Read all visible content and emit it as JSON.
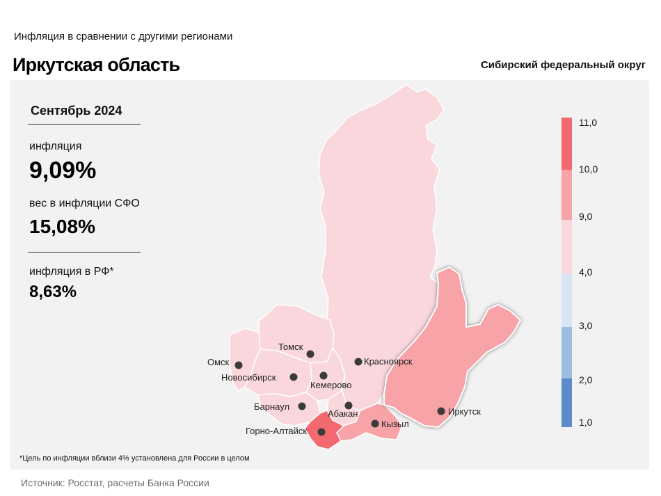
{
  "header": {
    "subtitle": "Инфляция  в сравнении  с другими  регионами",
    "title": "Иркутская область",
    "district": "Сибирский федеральный округ"
  },
  "stats": {
    "period": "Сентябрь 2024",
    "inflation_label": "инфляция",
    "inflation_value": "9,09%",
    "weight_label": "вес в инфляции  СФО",
    "weight_value": "15,08%",
    "rf_label": "инфляция  в РФ*",
    "rf_value": "8,63%"
  },
  "map": {
    "highlighted_region": "Иркутская область",
    "cities": [
      "Омск",
      "Томск",
      "Красноярск",
      "Новосибирск",
      "Кемерово",
      "Барнаул",
      "Абакан",
      "Горно-Алтайск",
      "Кызыл",
      "Иркутск"
    ],
    "colors": {
      "bin_4_9": "#f9d7dc",
      "bin_9_10": "#f7a3a8",
      "bin_10_11": "#f26a70",
      "bin_3_4": "#d9e4f4",
      "bin_2_3": "#9dbce0",
      "bin_1_2": "#5b8cc9"
    }
  },
  "legend": {
    "labels": [
      "11,0",
      "10,0",
      "9,0",
      "4,0",
      "3,0",
      "2,0",
      "1,0"
    ]
  },
  "footnote": "*Цель по инфляции вблизи 4% установлена для России в целом",
  "source": "Источник: Росстат, расчеты Банка России"
}
